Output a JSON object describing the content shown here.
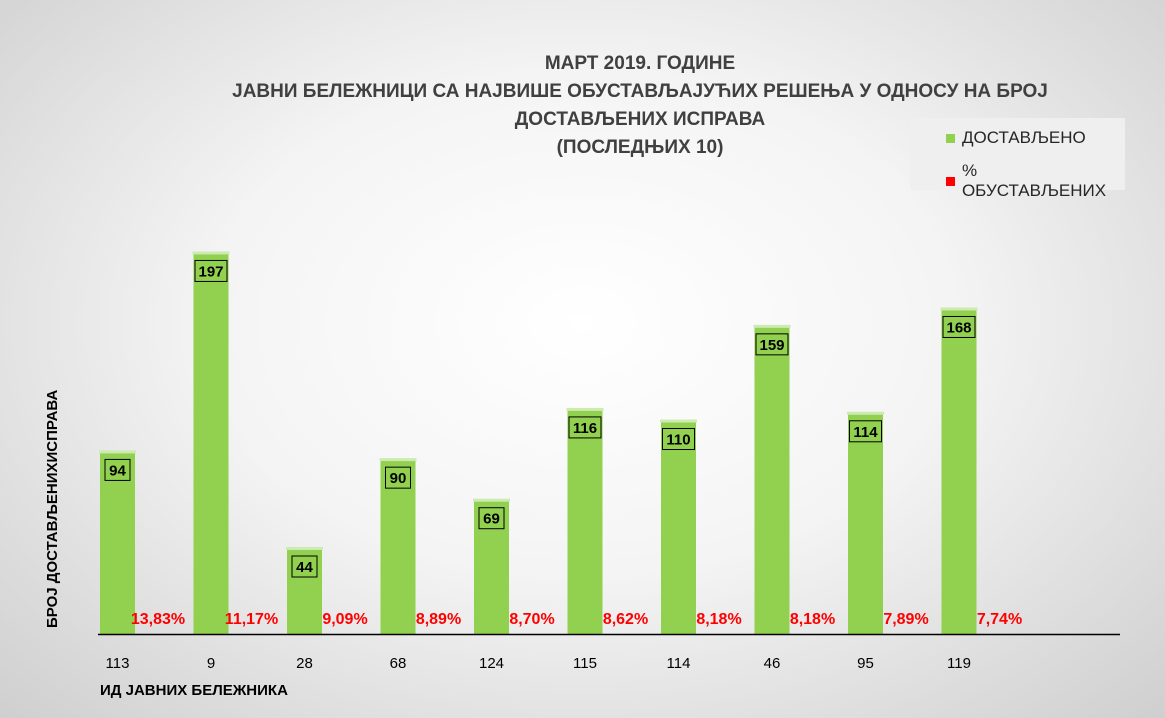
{
  "chart_data": {
    "type": "bar",
    "title": [
      "МАРТ 2019. ГОДИНЕ",
      "ЈАВНИ БЕЛЕЖНИЦИ СА НАЈВИШЕ ОБУСТАВЉАЈУЋИХ РЕШЕЊА У ОДНОСУ  НА БРОЈ",
      "ДОСТАВЉЕНИХ ИСПРАВА",
      "(ПОСЛЕДЊИХ 10)"
    ],
    "xlabel": "ИД ЈАВНИХ БЕЛЕЖНИКА",
    "ylabel": "БРОЈ ДОСТАВЉЕНИХИСПРАВА",
    "categories": [
      "113",
      "9",
      "28",
      "68",
      "124",
      "115",
      "114",
      "46",
      "95",
      "119"
    ],
    "series": [
      {
        "name": "ДОСТАВЉЕНО",
        "color": "#92d050",
        "values": [
          94,
          197,
          44,
          90,
          69,
          116,
          110,
          159,
          114,
          168
        ],
        "labels": [
          "94",
          "197",
          "44",
          "90",
          "69",
          "116",
          "110",
          "159",
          "114",
          "168"
        ]
      },
      {
        "name": "% ОБУСТАВЉЕНИХ",
        "color": "#ff0000",
        "values": [
          13.83,
          11.17,
          9.09,
          8.89,
          8.7,
          8.62,
          8.18,
          8.18,
          7.89,
          7.74
        ],
        "labels": [
          "13,83%",
          "11,17%",
          "9,09%",
          "8,89%",
          "8,70%",
          "8,62%",
          "8,18%",
          "8,18%",
          "7,89%",
          "7,74%"
        ]
      }
    ],
    "ylim": [
      0,
      205
    ],
    "grid": false,
    "legend_position": "top-right"
  }
}
